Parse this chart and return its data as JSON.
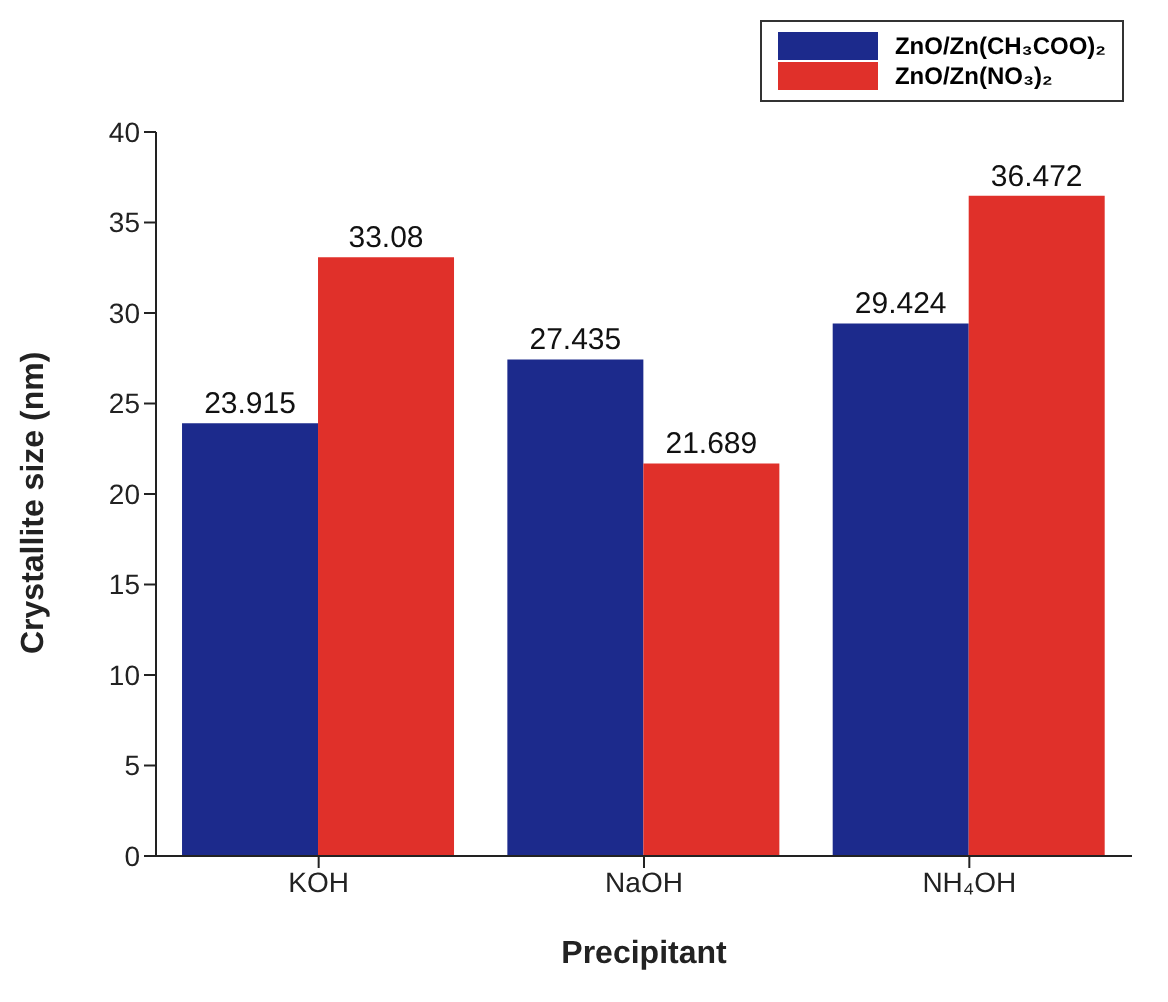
{
  "chart_data": {
    "type": "bar",
    "xlabel": "Precipitant",
    "ylabel": "Crystallite size (nm)",
    "categories": [
      "KOH",
      "NaOH",
      "NH₄OH"
    ],
    "series": [
      {
        "name": "ZnO/Zn(CH₃COO)₂",
        "color": "#1c2a8c",
        "values": [
          23.915,
          27.435,
          29.424
        ]
      },
      {
        "name": "ZnO/Zn(NO₃)₂",
        "color": "#e0302a",
        "values": [
          33.08,
          21.689,
          36.472
        ]
      }
    ],
    "ylim": [
      0,
      40
    ],
    "yticks": [
      0,
      5,
      10,
      15,
      20,
      25,
      30,
      35,
      40
    ],
    "grid": false,
    "legend": "top right",
    "data_labels": true
  }
}
